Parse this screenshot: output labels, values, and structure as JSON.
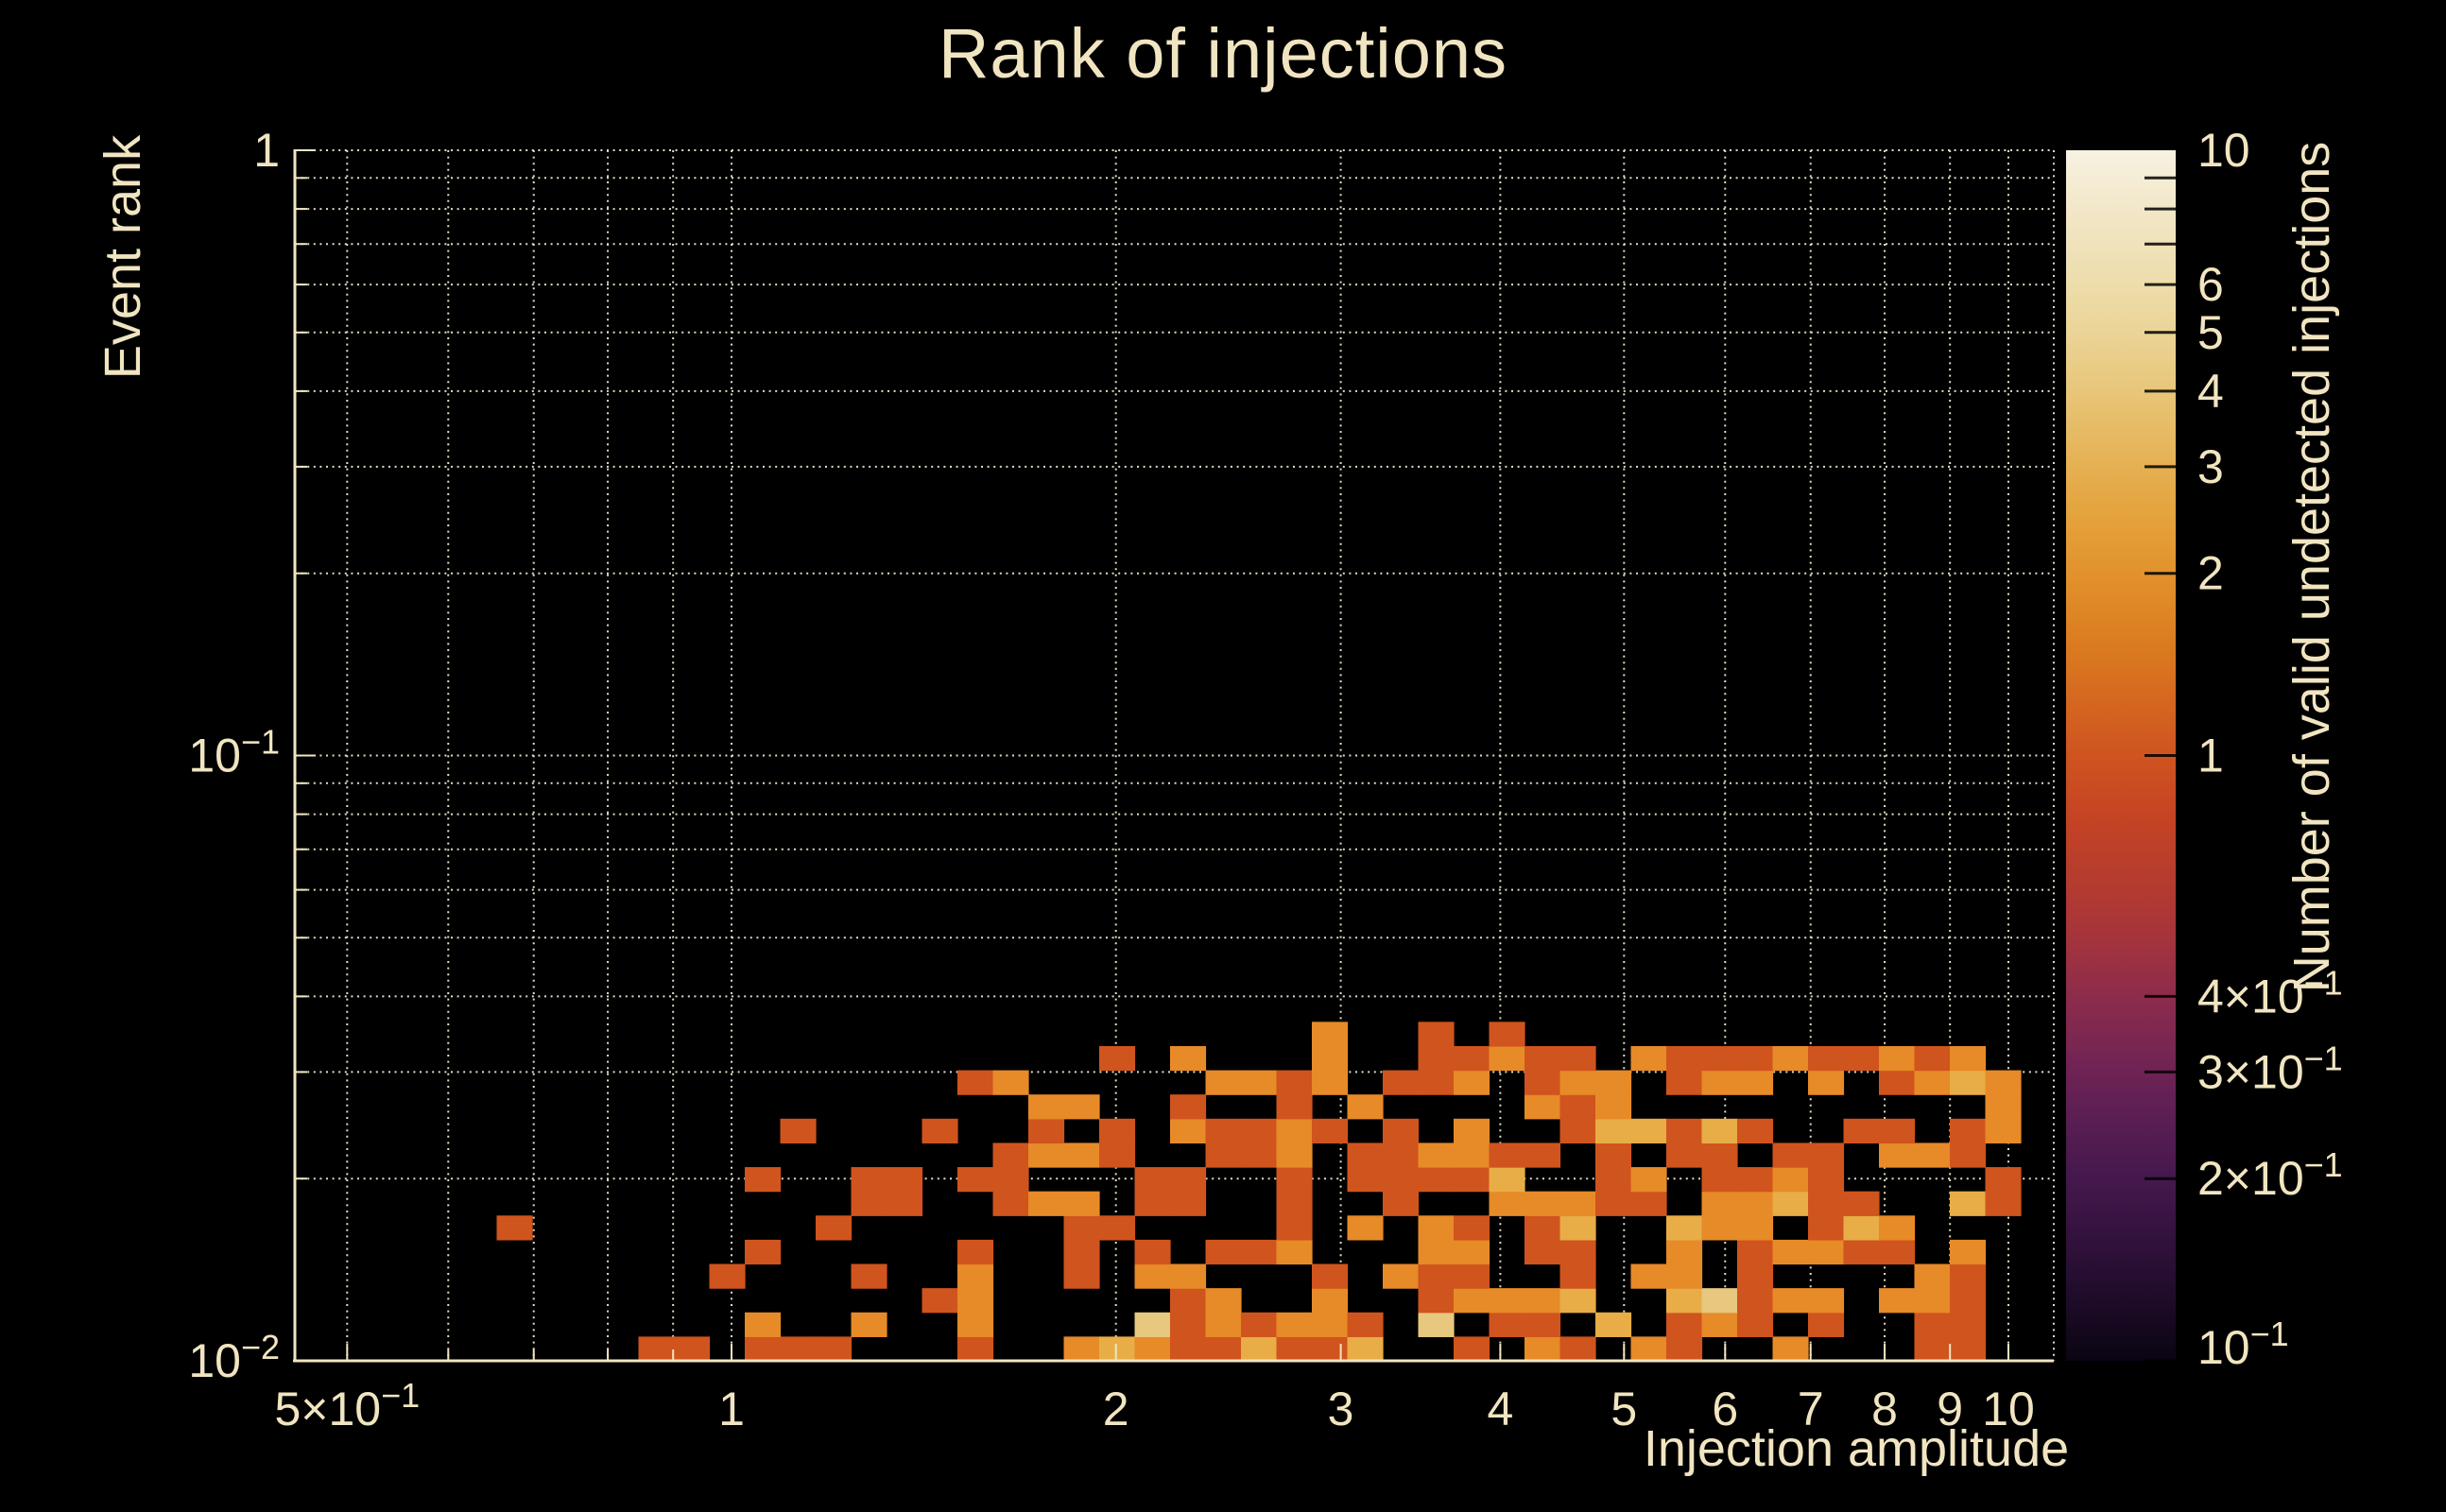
{
  "background": "#000000",
  "text_color": "#f1e5c1",
  "grid_color": "#efe8d0",
  "chart_data": {
    "type": "heatmap",
    "title": "Rank of injections",
    "xlabel": "Injection amplitude",
    "ylabel": "Event rank",
    "colorbar_label": "Number of valid undetected injections",
    "x_scale": "log",
    "y_scale": "log",
    "z_scale": "log",
    "xlim": [
      0.453,
      10.8
    ],
    "ylim": [
      0.01,
      1.0
    ],
    "zlim": [
      0.1,
      10
    ],
    "grid": "dotted",
    "x_ticks": [
      {
        "v": 0.5,
        "label": "5×10^{−1}"
      },
      {
        "v": 1,
        "label": "1"
      },
      {
        "v": 2,
        "label": "2"
      },
      {
        "v": 3,
        "label": "3"
      },
      {
        "v": 4,
        "label": "4"
      },
      {
        "v": 5,
        "label": "5"
      },
      {
        "v": 6,
        "label": "6"
      },
      {
        "v": 7,
        "label": "7"
      },
      {
        "v": 8,
        "label": "8"
      },
      {
        "v": 9,
        "label": "9"
      },
      {
        "v": 10,
        "label": "10"
      }
    ],
    "x_grid": [
      0.5,
      0.6,
      0.7,
      0.8,
      0.9,
      1,
      2,
      3,
      4,
      5,
      6,
      7,
      8,
      9,
      10
    ],
    "y_ticks": [
      {
        "v": 1,
        "label": "1"
      },
      {
        "v": 0.1,
        "label": "10^{−1}"
      },
      {
        "v": 0.01,
        "label": "10^{−2}"
      }
    ],
    "y_grid": [
      1,
      0.9,
      0.8,
      0.7,
      0.6,
      0.5,
      0.4,
      0.3,
      0.2,
      0.1,
      0.09,
      0.08,
      0.07,
      0.06,
      0.05,
      0.04,
      0.03,
      0.02,
      0.01
    ],
    "colorbar_ticks": [
      {
        "v": 10,
        "label": "10"
      },
      {
        "v": 9,
        "label": ""
      },
      {
        "v": 8,
        "label": ""
      },
      {
        "v": 7,
        "label": ""
      },
      {
        "v": 6,
        "label": "6"
      },
      {
        "v": 5,
        "label": "5"
      },
      {
        "v": 4,
        "label": "4"
      },
      {
        "v": 3,
        "label": "3"
      },
      {
        "v": 2,
        "label": "2"
      },
      {
        "v": 1,
        "label": "1"
      },
      {
        "v": 0.4,
        "label": "4×10^{−1}"
      },
      {
        "v": 0.3,
        "label": "3×10^{−1}"
      },
      {
        "v": 0.2,
        "label": "2×10^{−1}"
      },
      {
        "v": 0.1,
        "label": "10^{−1}"
      }
    ],
    "colormap_stops": [
      {
        "v": 10,
        "color": "#f7f2e2"
      },
      {
        "v": 8,
        "color": "#f2e7c8"
      },
      {
        "v": 6,
        "color": "#edddab"
      },
      {
        "v": 5,
        "color": "#ebd497"
      },
      {
        "v": 4,
        "color": "#e8c679"
      },
      {
        "v": 3,
        "color": "#e5b052"
      },
      {
        "v": 2.5,
        "color": "#e4a33d"
      },
      {
        "v": 2,
        "color": "#e2922c"
      },
      {
        "v": 1.5,
        "color": "#da7a20"
      },
      {
        "v": 1.2,
        "color": "#d46520"
      },
      {
        "v": 1,
        "color": "#cf5420"
      },
      {
        "v": 0.8,
        "color": "#c64424"
      },
      {
        "v": 0.6,
        "color": "#b23a30"
      },
      {
        "v": 0.5,
        "color": "#a5343c"
      },
      {
        "v": 0.4,
        "color": "#8d2c4c"
      },
      {
        "v": 0.3,
        "color": "#6e2355"
      },
      {
        "v": 0.25,
        "color": "#5a1e53"
      },
      {
        "v": 0.2,
        "color": "#45184d"
      },
      {
        "v": 0.15,
        "color": "#2d1038"
      },
      {
        "v": 0.12,
        "color": "#1a0a24"
      },
      {
        "v": 0.1,
        "color": "#0a0512"
      }
    ],
    "value_colors": {
      "1": "#d0541d",
      "2": "#e78a28",
      "3": "#e8ad46",
      "4": "#e7c87e"
    },
    "x_bins": {
      "log10_start": -0.21169,
      "dlog10": 0.027757,
      "count": 44
    },
    "y_bins": {
      "log10_start": -2.0,
      "dlog10": 0.04,
      "count": 14
    },
    "cells": [
      [
        5,
        0,
        1
      ],
      [
        6,
        0,
        1
      ],
      [
        8,
        0,
        1
      ],
      [
        9,
        0,
        1
      ],
      [
        10,
        0,
        1
      ],
      [
        14,
        0,
        1
      ],
      [
        17,
        0,
        2
      ],
      [
        18,
        0,
        3
      ],
      [
        19,
        0,
        2
      ],
      [
        20,
        0,
        1
      ],
      [
        21,
        0,
        1
      ],
      [
        22,
        0,
        3
      ],
      [
        23,
        0,
        1
      ],
      [
        24,
        0,
        1
      ],
      [
        25,
        0,
        3
      ],
      [
        28,
        0,
        1
      ],
      [
        30,
        0,
        2
      ],
      [
        31,
        0,
        1
      ],
      [
        33,
        0,
        2
      ],
      [
        34,
        0,
        1
      ],
      [
        37,
        0,
        2
      ],
      [
        41,
        0,
        1
      ],
      [
        42,
        0,
        1
      ],
      [
        8,
        1,
        2
      ],
      [
        11,
        1,
        2
      ],
      [
        14,
        1,
        2
      ],
      [
        19,
        1,
        4
      ],
      [
        20,
        1,
        1
      ],
      [
        21,
        1,
        2
      ],
      [
        22,
        1,
        1
      ],
      [
        23,
        1,
        2
      ],
      [
        24,
        1,
        2
      ],
      [
        25,
        1,
        1
      ],
      [
        27,
        1,
        4
      ],
      [
        29,
        1,
        1
      ],
      [
        30,
        1,
        1
      ],
      [
        32,
        1,
        3
      ],
      [
        34,
        1,
        1
      ],
      [
        35,
        1,
        2
      ],
      [
        36,
        1,
        1
      ],
      [
        38,
        1,
        1
      ],
      [
        41,
        1,
        1
      ],
      [
        42,
        1,
        1
      ],
      [
        13,
        2,
        1
      ],
      [
        14,
        2,
        2
      ],
      [
        20,
        2,
        1
      ],
      [
        21,
        2,
        2
      ],
      [
        24,
        2,
        2
      ],
      [
        27,
        2,
        1
      ],
      [
        28,
        2,
        2
      ],
      [
        29,
        2,
        2
      ],
      [
        30,
        2,
        2
      ],
      [
        31,
        2,
        3
      ],
      [
        34,
        2,
        3
      ],
      [
        35,
        2,
        4
      ],
      [
        36,
        2,
        1
      ],
      [
        37,
        2,
        2
      ],
      [
        38,
        2,
        2
      ],
      [
        40,
        2,
        2
      ],
      [
        41,
        2,
        2
      ],
      [
        42,
        2,
        1
      ],
      [
        7,
        3,
        1
      ],
      [
        11,
        3,
        1
      ],
      [
        14,
        3,
        2
      ],
      [
        17,
        3,
        1
      ],
      [
        19,
        3,
        2
      ],
      [
        20,
        3,
        2
      ],
      [
        24,
        3,
        1
      ],
      [
        26,
        3,
        2
      ],
      [
        27,
        3,
        1
      ],
      [
        28,
        3,
        1
      ],
      [
        31,
        3,
        1
      ],
      [
        33,
        3,
        2
      ],
      [
        34,
        3,
        2
      ],
      [
        36,
        3,
        1
      ],
      [
        41,
        3,
        2
      ],
      [
        42,
        3,
        1
      ],
      [
        8,
        4,
        1
      ],
      [
        14,
        4,
        1
      ],
      [
        17,
        4,
        1
      ],
      [
        19,
        4,
        1
      ],
      [
        21,
        4,
        1
      ],
      [
        22,
        4,
        1
      ],
      [
        23,
        4,
        2
      ],
      [
        27,
        4,
        2
      ],
      [
        28,
        4,
        2
      ],
      [
        30,
        4,
        1
      ],
      [
        31,
        4,
        1
      ],
      [
        34,
        4,
        2
      ],
      [
        36,
        4,
        1
      ],
      [
        37,
        4,
        2
      ],
      [
        38,
        4,
        2
      ],
      [
        39,
        4,
        1
      ],
      [
        40,
        4,
        1
      ],
      [
        42,
        4,
        2
      ],
      [
        1,
        5,
        1
      ],
      [
        10,
        5,
        1
      ],
      [
        17,
        5,
        1
      ],
      [
        18,
        5,
        1
      ],
      [
        23,
        5,
        1
      ],
      [
        25,
        5,
        2
      ],
      [
        27,
        5,
        2
      ],
      [
        28,
        5,
        1
      ],
      [
        30,
        5,
        1
      ],
      [
        31,
        5,
        3
      ],
      [
        34,
        5,
        3
      ],
      [
        35,
        5,
        2
      ],
      [
        36,
        5,
        2
      ],
      [
        38,
        5,
        1
      ],
      [
        39,
        5,
        3
      ],
      [
        40,
        5,
        2
      ],
      [
        11,
        6,
        1
      ],
      [
        12,
        6,
        1
      ],
      [
        15,
        6,
        1
      ],
      [
        16,
        6,
        2
      ],
      [
        17,
        6,
        2
      ],
      [
        19,
        6,
        1
      ],
      [
        20,
        6,
        1
      ],
      [
        23,
        6,
        1
      ],
      [
        26,
        6,
        1
      ],
      [
        29,
        6,
        2
      ],
      [
        30,
        6,
        2
      ],
      [
        31,
        6,
        2
      ],
      [
        32,
        6,
        1
      ],
      [
        33,
        6,
        1
      ],
      [
        35,
        6,
        2
      ],
      [
        36,
        6,
        2
      ],
      [
        37,
        6,
        3
      ],
      [
        38,
        6,
        1
      ],
      [
        39,
        6,
        1
      ],
      [
        42,
        6,
        3
      ],
      [
        43,
        6,
        1
      ],
      [
        8,
        7,
        1
      ],
      [
        11,
        7,
        1
      ],
      [
        12,
        7,
        1
      ],
      [
        14,
        7,
        1
      ],
      [
        15,
        7,
        1
      ],
      [
        19,
        7,
        1
      ],
      [
        20,
        7,
        1
      ],
      [
        23,
        7,
        1
      ],
      [
        25,
        7,
        1
      ],
      [
        26,
        7,
        1
      ],
      [
        27,
        7,
        1
      ],
      [
        28,
        7,
        1
      ],
      [
        29,
        7,
        3
      ],
      [
        32,
        7,
        1
      ],
      [
        33,
        7,
        2
      ],
      [
        35,
        7,
        1
      ],
      [
        36,
        7,
        1
      ],
      [
        37,
        7,
        2
      ],
      [
        38,
        7,
        1
      ],
      [
        43,
        7,
        1
      ],
      [
        15,
        8,
        1
      ],
      [
        16,
        8,
        2
      ],
      [
        17,
        8,
        2
      ],
      [
        18,
        8,
        1
      ],
      [
        21,
        8,
        1
      ],
      [
        22,
        8,
        1
      ],
      [
        23,
        8,
        2
      ],
      [
        25,
        8,
        1
      ],
      [
        26,
        8,
        1
      ],
      [
        27,
        8,
        2
      ],
      [
        28,
        8,
        2
      ],
      [
        29,
        8,
        1
      ],
      [
        30,
        8,
        1
      ],
      [
        32,
        8,
        1
      ],
      [
        34,
        8,
        1
      ],
      [
        35,
        8,
        1
      ],
      [
        37,
        8,
        1
      ],
      [
        38,
        8,
        1
      ],
      [
        40,
        8,
        2
      ],
      [
        41,
        8,
        2
      ],
      [
        42,
        8,
        1
      ],
      [
        9,
        9,
        1
      ],
      [
        13,
        9,
        1
      ],
      [
        16,
        9,
        1
      ],
      [
        18,
        9,
        1
      ],
      [
        20,
        9,
        2
      ],
      [
        21,
        9,
        1
      ],
      [
        22,
        9,
        1
      ],
      [
        23,
        9,
        2
      ],
      [
        24,
        9,
        1
      ],
      [
        26,
        9,
        1
      ],
      [
        28,
        9,
        2
      ],
      [
        31,
        9,
        1
      ],
      [
        32,
        9,
        3
      ],
      [
        33,
        9,
        3
      ],
      [
        34,
        9,
        1
      ],
      [
        35,
        9,
        3
      ],
      [
        36,
        9,
        1
      ],
      [
        39,
        9,
        1
      ],
      [
        40,
        9,
        1
      ],
      [
        42,
        9,
        1
      ],
      [
        43,
        9,
        2
      ],
      [
        16,
        10,
        2
      ],
      [
        17,
        10,
        2
      ],
      [
        20,
        10,
        1
      ],
      [
        23,
        10,
        1
      ],
      [
        25,
        10,
        2
      ],
      [
        30,
        10,
        2
      ],
      [
        31,
        10,
        1
      ],
      [
        32,
        10,
        2
      ],
      [
        43,
        10,
        2
      ],
      [
        14,
        11,
        1
      ],
      [
        15,
        11,
        2
      ],
      [
        21,
        11,
        2
      ],
      [
        22,
        11,
        2
      ],
      [
        23,
        11,
        1
      ],
      [
        24,
        11,
        2
      ],
      [
        26,
        11,
        1
      ],
      [
        27,
        11,
        1
      ],
      [
        28,
        11,
        2
      ],
      [
        30,
        11,
        1
      ],
      [
        31,
        11,
        2
      ],
      [
        32,
        11,
        2
      ],
      [
        34,
        11,
        1
      ],
      [
        35,
        11,
        2
      ],
      [
        36,
        11,
        2
      ],
      [
        38,
        11,
        2
      ],
      [
        40,
        11,
        1
      ],
      [
        41,
        11,
        2
      ],
      [
        42,
        11,
        3
      ],
      [
        43,
        11,
        2
      ],
      [
        18,
        12,
        1
      ],
      [
        20,
        12,
        2
      ],
      [
        24,
        12,
        2
      ],
      [
        27,
        12,
        1
      ],
      [
        28,
        12,
        1
      ],
      [
        29,
        12,
        2
      ],
      [
        30,
        12,
        1
      ],
      [
        31,
        12,
        1
      ],
      [
        33,
        12,
        2
      ],
      [
        34,
        12,
        1
      ],
      [
        35,
        12,
        1
      ],
      [
        36,
        12,
        1
      ],
      [
        37,
        12,
        2
      ],
      [
        38,
        12,
        1
      ],
      [
        39,
        12,
        1
      ],
      [
        40,
        12,
        2
      ],
      [
        41,
        12,
        1
      ],
      [
        42,
        12,
        2
      ],
      [
        24,
        13,
        2
      ],
      [
        27,
        13,
        1
      ],
      [
        29,
        13,
        1
      ]
    ]
  }
}
